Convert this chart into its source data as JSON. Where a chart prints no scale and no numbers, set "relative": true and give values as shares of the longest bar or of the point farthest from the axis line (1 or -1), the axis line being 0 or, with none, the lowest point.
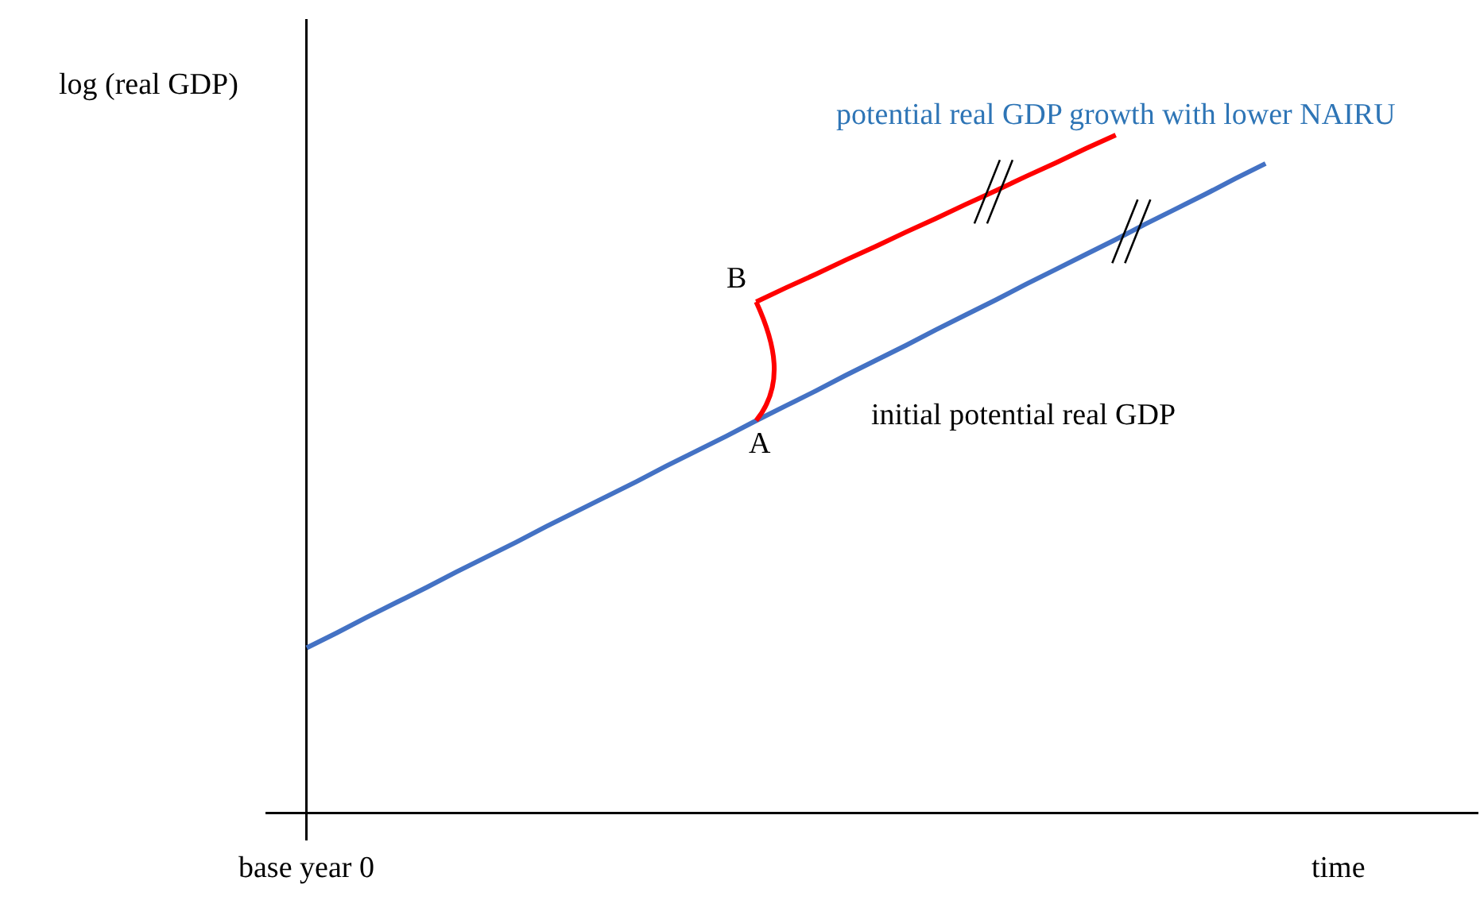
{
  "chart_data": {
    "type": "line",
    "relative": true,
    "ylabel": "log (real GDP)",
    "xlabel": "time",
    "categories": [
      null,
      null,
      null,
      null,
      null,
      null,
      null,
      null,
      null,
      null,
      null,
      null,
      null,
      null,
      null,
      null,
      null,
      null,
      null,
      null,
      null,
      null,
      null,
      null,
      null,
      null,
      null,
      null,
      null,
      null,
      null,
      null,
      null
    ],
    "series": [
      {
        "name": "initial potential real GDP",
        "color": "#4472c4",
        "values": [
          0.244,
          0.266,
          0.289,
          0.311,
          0.333,
          0.356,
          0.378,
          0.4,
          0.423,
          0.445,
          0.467,
          0.489,
          0.512,
          0.534,
          0.556,
          0.579,
          0.601,
          0.623,
          0.646,
          0.668,
          0.69,
          0.713,
          0.735,
          0.757,
          0.78,
          0.802,
          0.824,
          0.846,
          0.869,
          0.891,
          0.913,
          0.936,
          0.958
        ]
      },
      {
        "color": "#ff0000",
        "values": [
          null,
          null,
          null,
          null,
          null,
          null,
          null,
          null,
          null,
          null,
          null,
          null,
          null,
          null,
          null,
          0.754,
          0.775,
          0.795,
          0.816,
          0.836,
          0.857,
          0.877,
          0.898,
          0.918,
          0.939,
          0.959,
          0.98,
          1,
          null,
          null,
          null,
          null,
          null
        ]
      }
    ],
    "annotations": [
      "A",
      "B",
      "base year 0",
      "potential real GDP growth with lower NAIRU"
    ]
  }
}
